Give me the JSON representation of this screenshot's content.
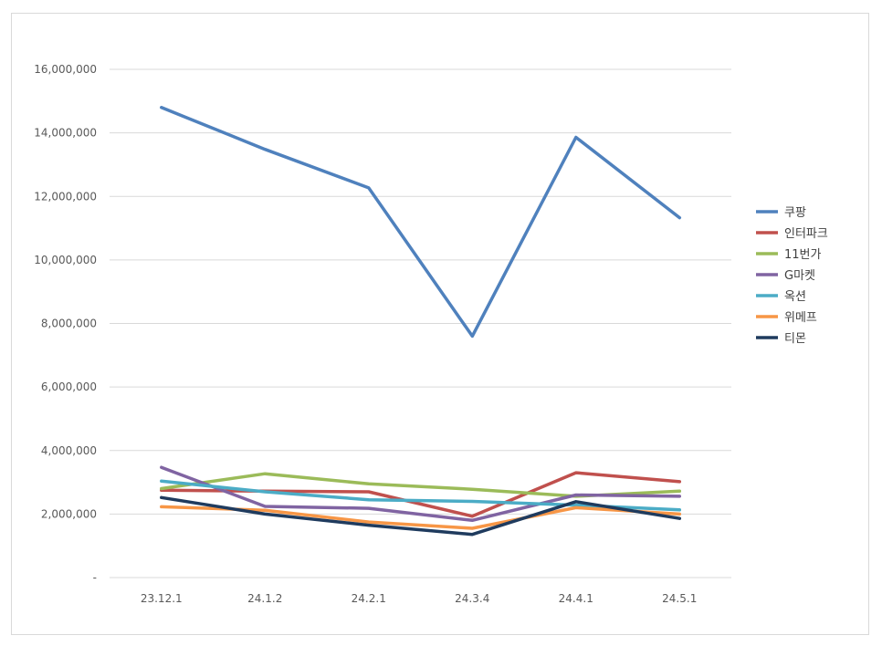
{
  "chart_data": {
    "type": "line",
    "title": "",
    "xlabel": "",
    "ylabel": "",
    "categories": [
      "23.12.1",
      "24.1.2",
      "24.2.1",
      "24.3.4",
      "24.4.1",
      "24.5.1"
    ],
    "ylim": [
      0,
      16000000
    ],
    "yticks": [
      {
        "value": 0,
        "label": "-"
      },
      {
        "value": 2000000,
        "label": "2,000,000"
      },
      {
        "value": 4000000,
        "label": "4,000,000"
      },
      {
        "value": 6000000,
        "label": "6,000,000"
      },
      {
        "value": 8000000,
        "label": "8,000,000"
      },
      {
        "value": 10000000,
        "label": "10,000,000"
      },
      {
        "value": 12000000,
        "label": "12,000,000"
      },
      {
        "value": 14000000,
        "label": "14,000,000"
      },
      {
        "value": 16000000,
        "label": "16,000,000"
      }
    ],
    "grid": true,
    "legend": "right",
    "series": [
      {
        "name": "쿠팡",
        "color": "#4f81bd",
        "values": [
          14800000,
          13480000,
          12270000,
          7600000,
          13860000,
          11330000
        ]
      },
      {
        "name": "인터파크",
        "color": "#c0504d",
        "values": [
          2750000,
          2720000,
          2700000,
          1930000,
          3300000,
          3020000
        ]
      },
      {
        "name": "11번가",
        "color": "#9bbb59",
        "values": [
          2800000,
          3270000,
          2950000,
          2780000,
          2560000,
          2720000
        ]
      },
      {
        "name": "G마켓",
        "color": "#8064a2",
        "values": [
          3470000,
          2240000,
          2180000,
          1800000,
          2600000,
          2560000
        ]
      },
      {
        "name": "옥션",
        "color": "#4bacc6",
        "values": [
          3040000,
          2700000,
          2450000,
          2400000,
          2280000,
          2130000
        ]
      },
      {
        "name": "위메프",
        "color": "#f79646",
        "values": [
          2230000,
          2120000,
          1750000,
          1550000,
          2200000,
          2000000
        ]
      },
      {
        "name": "티몬",
        "color": "#1f3b5e",
        "values": [
          2520000,
          2000000,
          1650000,
          1360000,
          2390000,
          1860000
        ]
      }
    ]
  }
}
